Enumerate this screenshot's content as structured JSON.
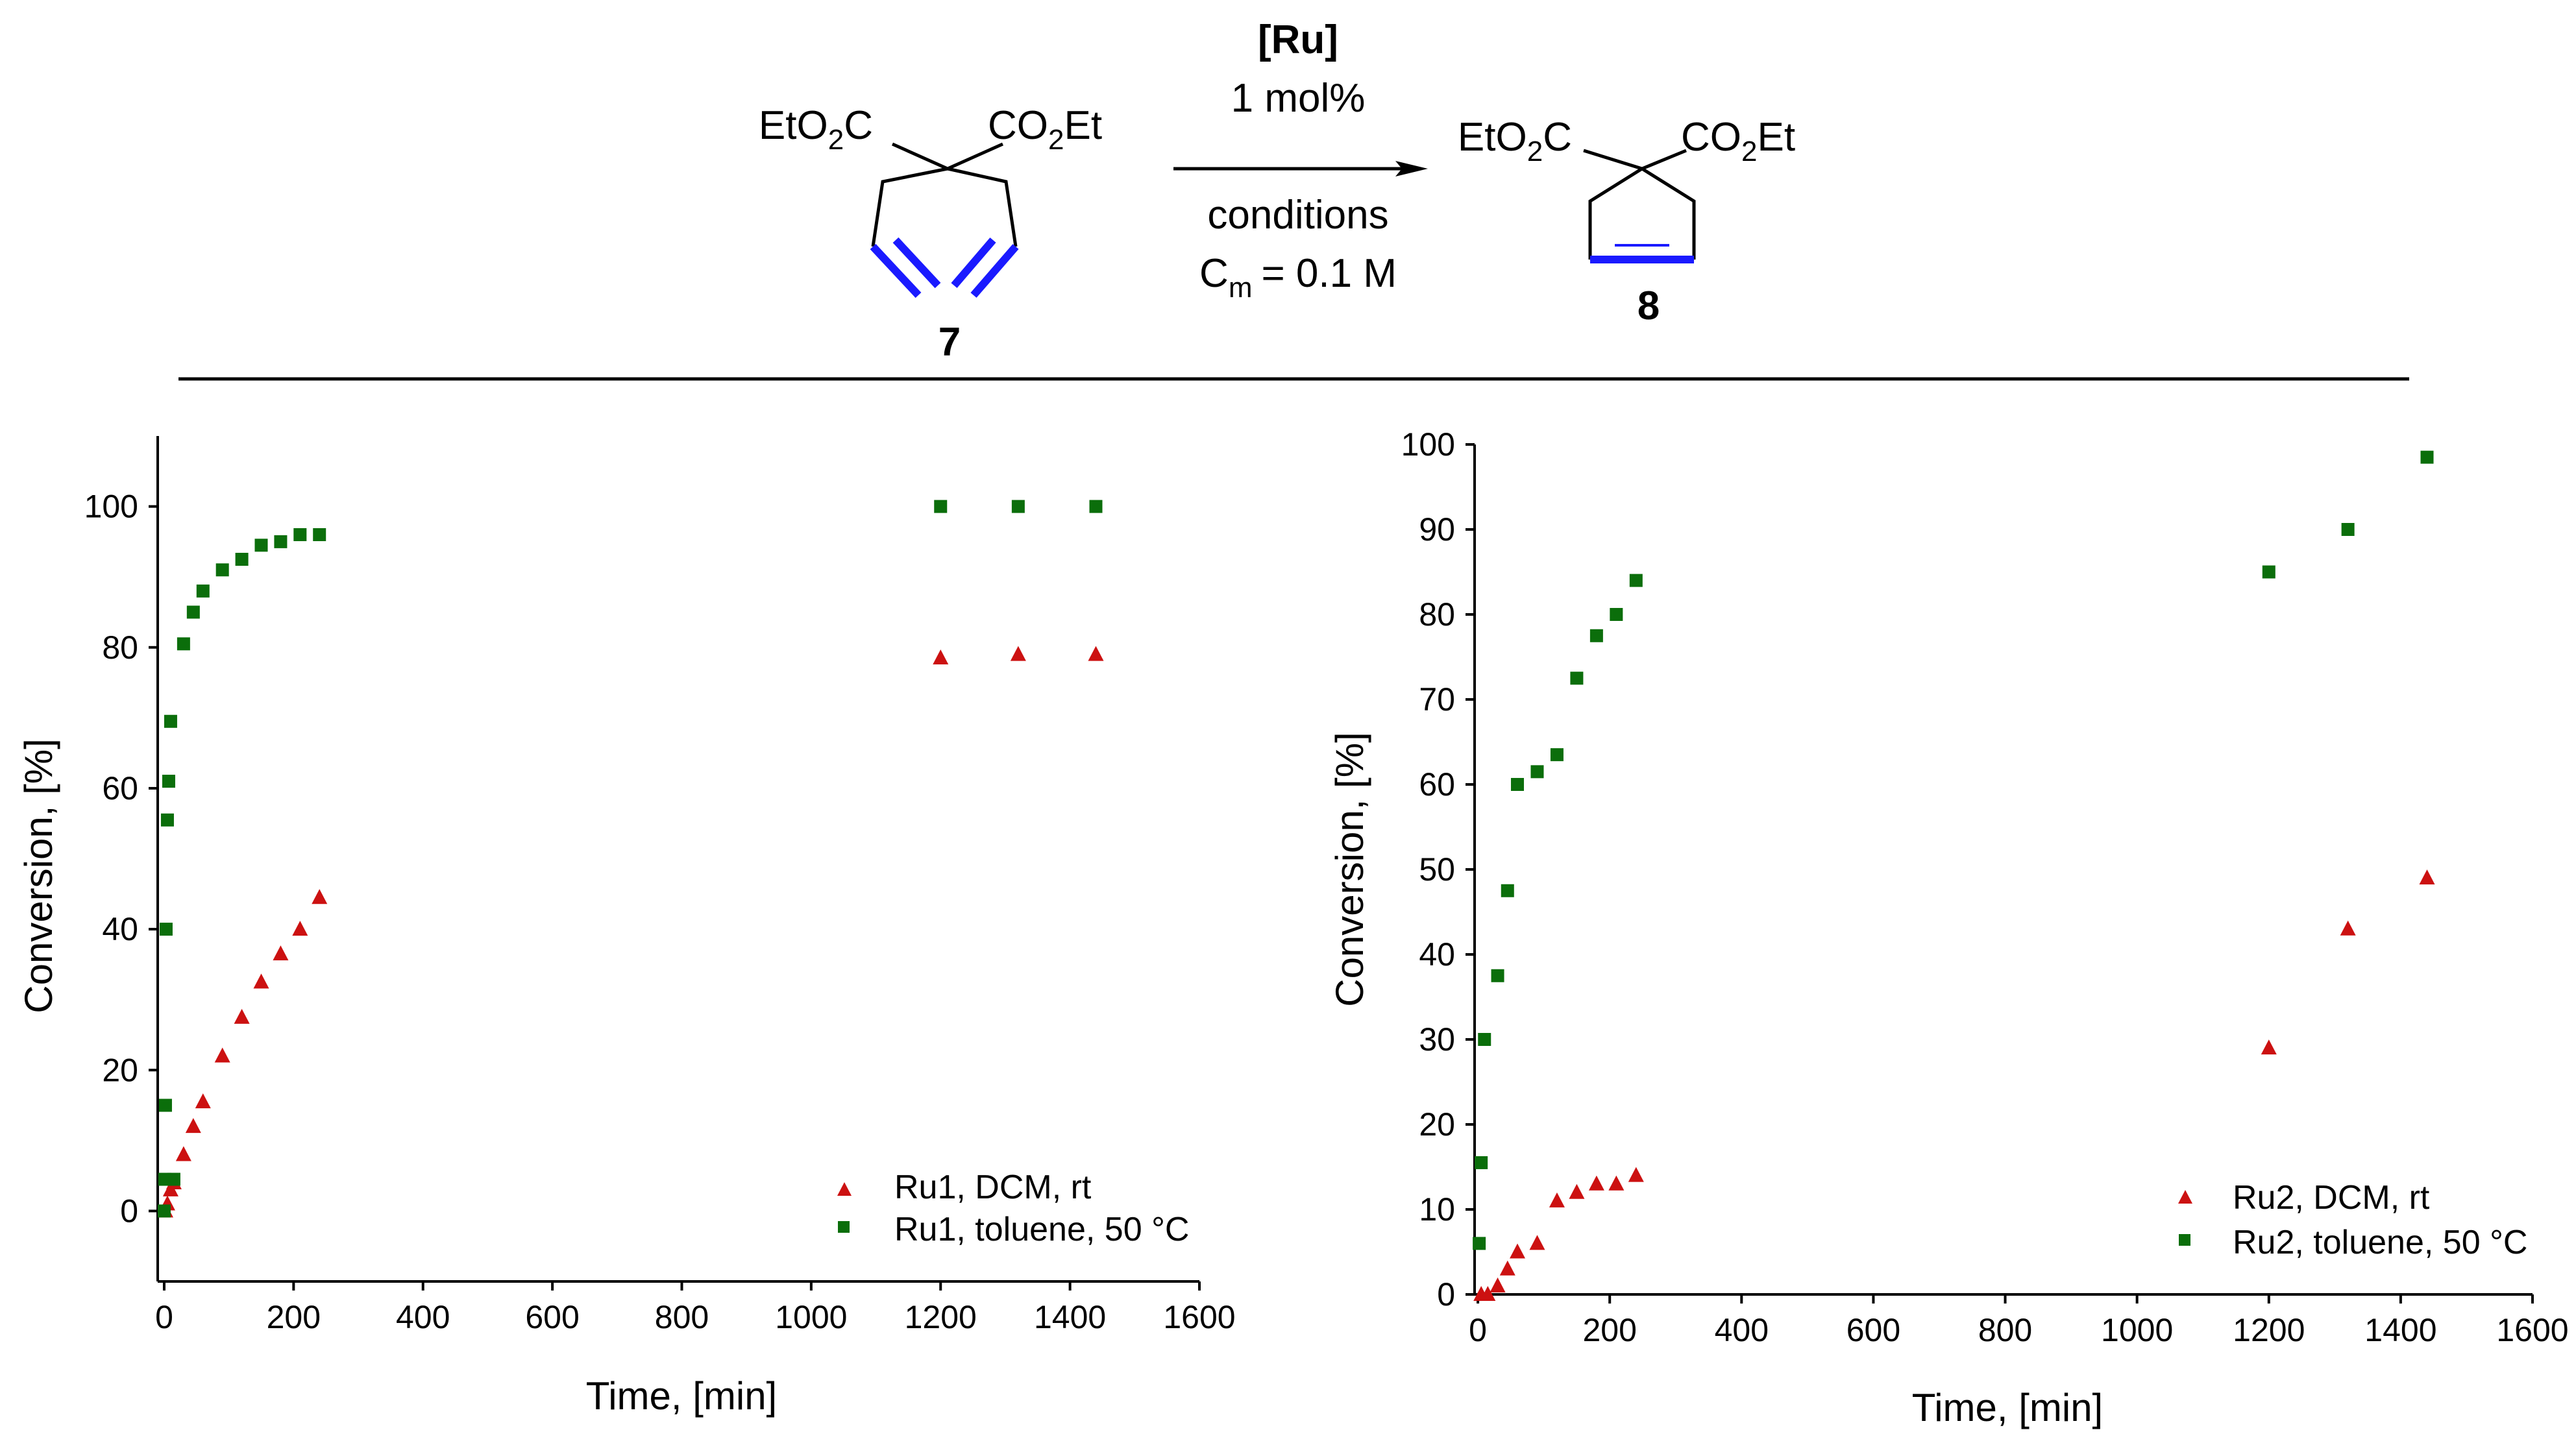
{
  "scheme": {
    "catalyst": "[Ru]",
    "loading": "1 mol%",
    "conditions": "conditions",
    "conc_symbol": "C",
    "conc_subscript": "m",
    "conc_value": "= 0.1 M",
    "sm": {
      "label": "7",
      "left_a": "EtO",
      "left_sub": "2",
      "left_b": "C",
      "right_a": "CO",
      "right_sub": "2",
      "right_b": "Et"
    },
    "prod": {
      "label": "8",
      "left_a": "EtO",
      "left_sub": "2",
      "left_b": "C",
      "right_a": "CO",
      "right_sub": "2",
      "right_b": "Et"
    }
  },
  "colors": {
    "red": "#cc1111",
    "green": "#0b6e0b",
    "bond_blue": "#1a1aff"
  },
  "chart_data": [
    {
      "type": "scatter",
      "title": "",
      "xlabel": "Time, [min]",
      "ylabel": "Conversion, [%]",
      "xlim": [
        -10,
        1600
      ],
      "ylim": [
        -10,
        110
      ],
      "xticks": [
        0,
        200,
        400,
        600,
        800,
        1000,
        1200,
        1400,
        1600
      ],
      "yticks": [
        0,
        20,
        40,
        60,
        80,
        100
      ],
      "legend_position": "bottom-right",
      "series": [
        {
          "name": "Ru1, DCM, rt",
          "marker": "triangle",
          "color": "red",
          "x": [
            2,
            5,
            10,
            15,
            30,
            45,
            60,
            90,
            120,
            150,
            180,
            210,
            240,
            1200,
            1320,
            1440
          ],
          "y": [
            0,
            1,
            3,
            4,
            8,
            12,
            15.5,
            22,
            27.5,
            32.5,
            36.5,
            40,
            44.5,
            78.5,
            79,
            79
          ]
        },
        {
          "name": "Ru1, toluene, 50 °C",
          "marker": "square",
          "color": "green",
          "x": [
            0,
            1,
            2,
            3,
            5,
            7,
            10,
            15,
            30,
            45,
            60,
            90,
            120,
            150,
            180,
            210,
            240,
            1200,
            1320,
            1440
          ],
          "y": [
            0,
            4.5,
            15,
            40,
            55.5,
            61,
            69.5,
            4.5,
            80.5,
            85,
            88,
            91,
            92.5,
            94.5,
            95,
            96,
            96,
            100,
            100,
            100
          ]
        }
      ]
    },
    {
      "type": "scatter",
      "title": "",
      "xlabel": "Time, [min]",
      "ylabel": "Conversion, [%]",
      "xlim": [
        -5,
        1600
      ],
      "ylim": [
        0,
        100
      ],
      "xticks": [
        0,
        200,
        400,
        600,
        800,
        1000,
        1200,
        1400,
        1600
      ],
      "yticks": [
        0,
        10,
        20,
        30,
        40,
        50,
        60,
        70,
        80,
        90,
        100
      ],
      "legend_position": "bottom-right",
      "series": [
        {
          "name": "Ru2, DCM, rt",
          "marker": "triangle",
          "color": "red",
          "x": [
            5,
            15,
            30,
            45,
            60,
            90,
            120,
            150,
            180,
            210,
            240,
            1200,
            1320,
            1440
          ],
          "y": [
            0,
            0,
            1,
            3,
            5,
            6,
            11,
            12,
            13,
            13,
            14,
            29,
            43,
            49
          ]
        },
        {
          "name": "Ru2, toluene, 50 °C",
          "marker": "square",
          "color": "green",
          "x": [
            2,
            5,
            10,
            30,
            45,
            60,
            90,
            120,
            150,
            180,
            210,
            240,
            1200,
            1320,
            1440
          ],
          "y": [
            6,
            15.5,
            30,
            37.5,
            47.5,
            60,
            61.5,
            63.5,
            72.5,
            77.5,
            80,
            84,
            85,
            90,
            98.5
          ]
        }
      ]
    }
  ]
}
